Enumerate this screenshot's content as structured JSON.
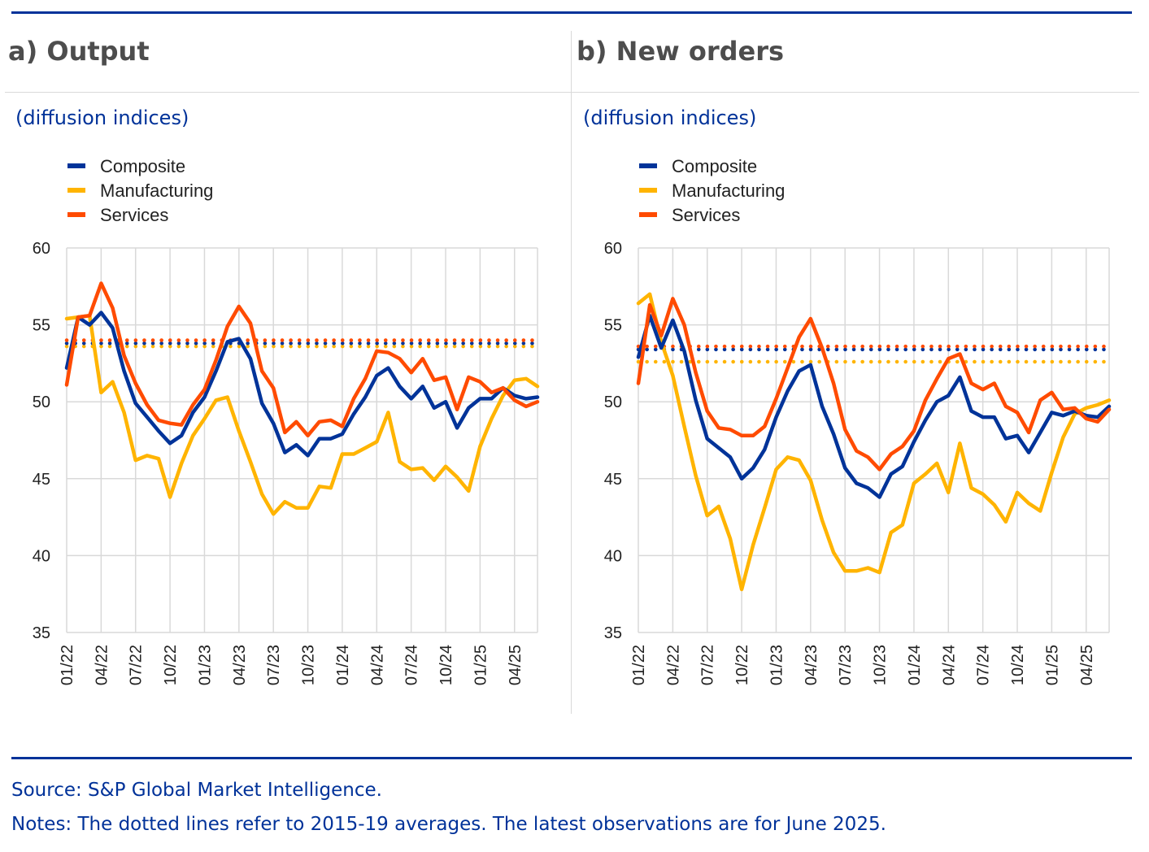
{
  "footer": {
    "source": "Source: S&P Global Market Intelligence.",
    "notes": "Notes: The dotted lines refer to 2015-19 averages. The latest observations are for June 2025."
  },
  "colors": {
    "composite": "#003399",
    "manufacturing": "#ffb400",
    "services": "#ff4b00",
    "grid": "#d9d9d9",
    "rule": "#003299"
  },
  "chart_data": [
    {
      "type": "line",
      "title": "a) Output",
      "subtitle": "(diffusion indices)",
      "ylim": [
        35,
        60
      ],
      "yticks": [
        "60",
        "55",
        "50",
        "45",
        "40",
        "35"
      ],
      "xticks": [
        "01/22",
        "04/22",
        "07/22",
        "10/22",
        "01/23",
        "04/23",
        "07/23",
        "10/23",
        "01/24",
        "04/24",
        "07/24",
        "10/24",
        "01/25",
        "04/25"
      ],
      "legend": [
        "Composite",
        "Manufacturing",
        "Services"
      ],
      "series": [
        {
          "name": "Composite",
          "values": [
            52.2,
            55.5,
            55.0,
            55.8,
            54.8,
            52.0,
            49.9,
            49.0,
            48.1,
            47.3,
            47.8,
            49.3,
            50.3,
            52.0,
            53.9,
            54.1,
            52.8,
            49.9,
            48.6,
            46.7,
            47.2,
            46.5,
            47.6,
            47.6,
            47.9,
            49.2,
            50.3,
            51.7,
            52.2,
            51.0,
            50.2,
            51.0,
            49.6,
            50.0,
            48.3,
            49.6,
            50.2,
            50.2,
            50.9,
            50.4,
            50.2,
            50.3
          ],
          "average": 53.8
        },
        {
          "name": "Manufacturing",
          "values": [
            55.4,
            55.5,
            55.6,
            50.6,
            51.3,
            49.3,
            46.2,
            46.5,
            46.3,
            43.8,
            46.0,
            47.8,
            48.9,
            50.1,
            50.3,
            48.1,
            46.1,
            44.0,
            42.7,
            43.5,
            43.1,
            43.1,
            44.5,
            44.4,
            46.6,
            46.6,
            47.0,
            47.4,
            49.3,
            46.1,
            45.6,
            45.7,
            44.9,
            45.8,
            45.1,
            44.2,
            47.1,
            48.9,
            50.4,
            51.4,
            51.5,
            51.0
          ],
          "average": 53.6
        },
        {
          "name": "Services",
          "values": [
            51.1,
            55.5,
            55.6,
            57.7,
            56.1,
            53.0,
            51.2,
            49.8,
            48.8,
            48.6,
            48.5,
            49.8,
            50.8,
            52.7,
            54.9,
            56.2,
            55.1,
            52.0,
            50.9,
            48.0,
            48.7,
            47.8,
            48.7,
            48.8,
            48.4,
            50.2,
            51.5,
            53.3,
            53.2,
            52.8,
            51.9,
            52.8,
            51.4,
            51.6,
            49.5,
            51.6,
            51.3,
            50.6,
            50.9,
            50.1,
            49.7,
            50.0
          ],
          "average": 54.0
        }
      ]
    },
    {
      "type": "line",
      "title": "b) New orders",
      "subtitle": "(diffusion indices)",
      "ylim": [
        35,
        60
      ],
      "yticks": [
        "60",
        "55",
        "50",
        "45",
        "40",
        "35"
      ],
      "xticks": [
        "01/22",
        "04/22",
        "07/22",
        "10/22",
        "01/23",
        "04/23",
        "07/23",
        "10/23",
        "01/24",
        "04/24",
        "07/24",
        "10/24",
        "01/25",
        "04/25"
      ],
      "legend": [
        "Composite",
        "Manufacturing",
        "Services"
      ],
      "series": [
        {
          "name": "Composite",
          "values": [
            52.9,
            55.6,
            53.5,
            55.3,
            53.3,
            50.1,
            47.6,
            47.0,
            46.4,
            45.0,
            45.7,
            46.9,
            49.0,
            50.7,
            52.0,
            52.4,
            49.7,
            47.9,
            45.7,
            44.7,
            44.4,
            43.8,
            45.3,
            45.8,
            47.4,
            48.8,
            50.0,
            50.4,
            51.6,
            49.4,
            49.0,
            49.0,
            47.6,
            47.8,
            46.7,
            48.0,
            49.3,
            49.1,
            49.4,
            49.1,
            49.0,
            49.7
          ],
          "average": 53.4
        },
        {
          "name": "Manufacturing",
          "values": [
            56.4,
            57.0,
            53.9,
            51.7,
            48.4,
            45.2,
            42.6,
            43.2,
            41.1,
            37.8,
            40.7,
            43.1,
            45.6,
            46.4,
            46.2,
            44.9,
            42.3,
            40.2,
            39.0,
            39.0,
            39.2,
            38.9,
            41.5,
            42.0,
            44.7,
            45.3,
            46.0,
            44.1,
            47.3,
            44.4,
            44.0,
            43.3,
            42.2,
            44.1,
            43.4,
            42.9,
            45.4,
            47.7,
            49.2,
            49.6,
            49.8,
            50.1
          ],
          "average": 52.6
        },
        {
          "name": "Services",
          "values": [
            51.2,
            56.3,
            54.3,
            56.7,
            55.0,
            51.9,
            49.4,
            48.3,
            48.2,
            47.8,
            47.8,
            48.4,
            50.2,
            52.2,
            54.2,
            55.4,
            53.5,
            51.2,
            48.2,
            46.8,
            46.4,
            45.6,
            46.6,
            47.1,
            48.1,
            50.1,
            51.5,
            52.8,
            53.1,
            51.2,
            50.8,
            51.2,
            49.7,
            49.3,
            48.0,
            50.1,
            50.6,
            49.5,
            49.6,
            48.9,
            48.7,
            49.5
          ],
          "average": 53.6
        }
      ]
    }
  ]
}
